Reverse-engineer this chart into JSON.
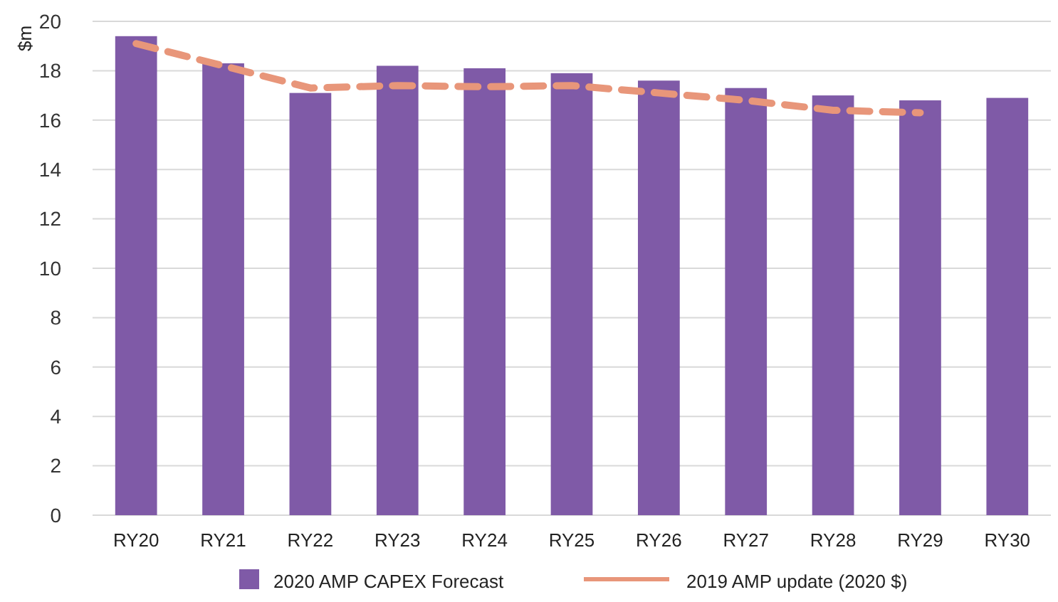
{
  "chart_data": {
    "type": "bar",
    "ylabel": "$m",
    "categories": [
      "RY20",
      "RY21",
      "RY22",
      "RY23",
      "RY24",
      "RY25",
      "RY26",
      "RY27",
      "RY28",
      "RY29",
      "RY30"
    ],
    "series": [
      {
        "name": "2020 AMP CAPEX Forecast",
        "color": "#7f5aa7",
        "values": [
          19.4,
          18.3,
          17.1,
          18.2,
          18.1,
          17.9,
          17.6,
          17.3,
          17.0,
          16.8,
          16.9
        ]
      },
      {
        "name": "2019 AMP update (2020 $)",
        "type": "line",
        "color": "#e8967a",
        "line_style": "dashed",
        "values": [
          19.1,
          18.2,
          17.3,
          17.4,
          17.35,
          17.4,
          17.1,
          16.8,
          16.4,
          16.3,
          null
        ]
      }
    ],
    "ylim": [
      0,
      20
    ],
    "yticks": [
      0,
      2,
      4,
      6,
      8,
      10,
      12,
      14,
      16,
      18,
      20
    ],
    "grid": "y",
    "legend": "bottom"
  }
}
